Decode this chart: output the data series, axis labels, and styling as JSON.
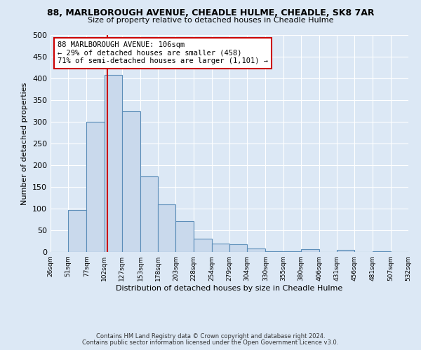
{
  "title": "88, MARLBOROUGH AVENUE, CHEADLE HULME, CHEADLE, SK8 7AR",
  "subtitle": "Size of property relative to detached houses in Cheadle Hulme",
  "xlabel": "Distribution of detached houses by size in Cheadle Hulme",
  "ylabel": "Number of detached properties",
  "bin_edges": [
    26,
    51,
    77,
    102,
    127,
    153,
    178,
    203,
    228,
    254,
    279,
    304,
    330,
    355,
    380,
    406,
    431,
    456,
    481,
    507,
    532
  ],
  "bin_labels": [
    "26sqm",
    "51sqm",
    "77sqm",
    "102sqm",
    "127sqm",
    "153sqm",
    "178sqm",
    "203sqm",
    "228sqm",
    "254sqm",
    "279sqm",
    "304sqm",
    "330sqm",
    "355sqm",
    "380sqm",
    "406sqm",
    "431sqm",
    "456sqm",
    "481sqm",
    "507sqm",
    "532sqm"
  ],
  "counts": [
    0,
    97,
    300,
    408,
    325,
    174,
    109,
    71,
    30,
    20,
    17,
    8,
    1,
    1,
    6,
    0,
    5,
    0,
    1,
    0,
    3
  ],
  "bar_color": "#c9d9ec",
  "bar_edge_color": "#5b8db8",
  "vline_x": 106,
  "vline_color": "#cc0000",
  "annotation_title": "88 MARLBOROUGH AVENUE: 106sqm",
  "annotation_line1": "← 29% of detached houses are smaller (458)",
  "annotation_line2": "71% of semi-detached houses are larger (1,101) →",
  "annotation_box_color": "#ffffff",
  "annotation_border_color": "#cc0000",
  "ylim": [
    0,
    500
  ],
  "yticks": [
    0,
    50,
    100,
    150,
    200,
    250,
    300,
    350,
    400,
    450,
    500
  ],
  "footer1": "Contains HM Land Registry data © Crown copyright and database right 2024.",
  "footer2": "Contains public sector information licensed under the Open Government Licence v3.0.",
  "bg_color": "#dce8f5",
  "plot_bg_color": "#dce8f5"
}
